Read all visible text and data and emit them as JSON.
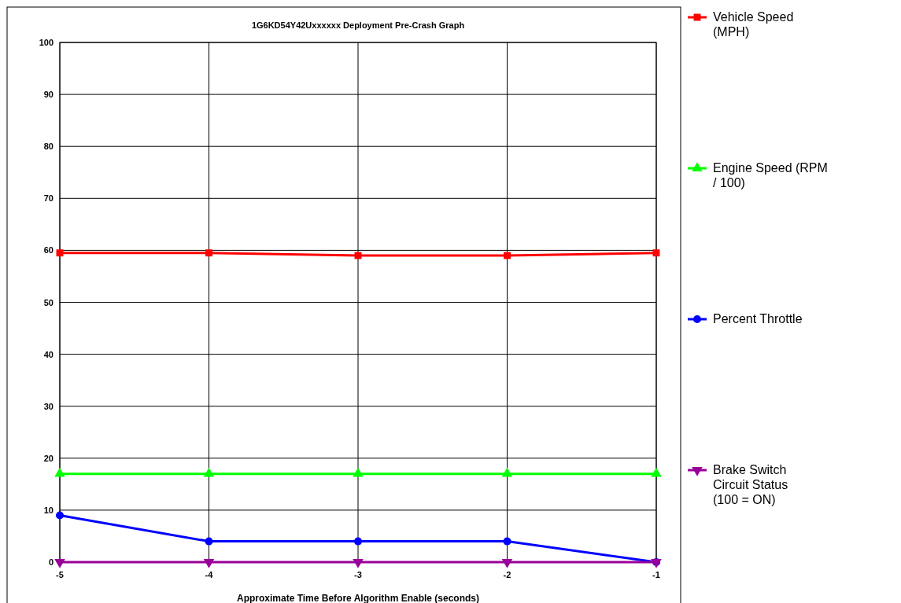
{
  "chart_data": {
    "type": "line",
    "title": "1G6KD54Y42Uxxxxxx Deployment Pre-Crash Graph",
    "xlabel": "Approximate Time Before Algorithm Enable (seconds)",
    "x": [
      -5,
      -4,
      -3,
      -2,
      -1
    ],
    "xlim": [
      -5,
      -1
    ],
    "xticks": [
      -5,
      -4,
      -3,
      -2,
      -1
    ],
    "ylim": [
      0,
      100
    ],
    "yticks": [
      0,
      10,
      20,
      30,
      40,
      50,
      60,
      70,
      80,
      90,
      100
    ],
    "grid": true,
    "legend": "right",
    "line_style": "solid",
    "series": [
      {
        "name": "Vehicle Speed (MPH)",
        "color": "#ff0000",
        "marker": "square",
        "values": [
          59.5,
          59.5,
          59,
          59,
          59.5
        ]
      },
      {
        "name": "Engine Speed (RPM / 100)",
        "color": "#00ff00",
        "marker": "triangle",
        "values": [
          17,
          17,
          17,
          17,
          17
        ]
      },
      {
        "name": "Percent Throttle",
        "color": "#0000ff",
        "marker": "circle",
        "values": [
          9,
          4,
          4,
          4,
          0
        ]
      },
      {
        "name": "Brake Switch Circuit Status (100 = ON)",
        "color": "#990099",
        "marker": "triangle-down",
        "values": [
          0,
          0,
          0,
          0,
          0
        ]
      }
    ]
  }
}
